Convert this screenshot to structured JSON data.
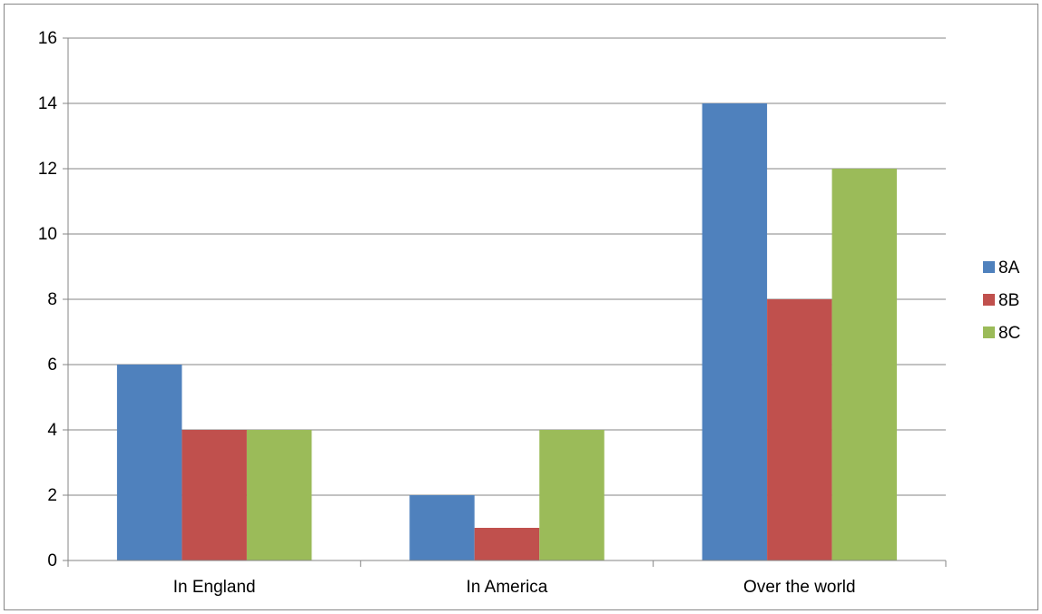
{
  "chart_data": {
    "type": "bar",
    "title": "",
    "xlabel": "",
    "ylabel": "",
    "categories": [
      "In England",
      "In America",
      "Over the world"
    ],
    "series": [
      {
        "name": "8A",
        "values": [
          6,
          2,
          14
        ],
        "color": "#4F81BD"
      },
      {
        "name": "8B",
        "values": [
          4,
          1,
          8
        ],
        "color": "#C0504D"
      },
      {
        "name": "8C",
        "values": [
          4,
          4,
          12
        ],
        "color": "#9BBB59"
      }
    ],
    "ylim": [
      0,
      16
    ],
    "yticks": [
      "0",
      "2",
      "4",
      "6",
      "8",
      "10",
      "12",
      "14",
      "16"
    ],
    "grid": true,
    "legend_position": "right"
  }
}
